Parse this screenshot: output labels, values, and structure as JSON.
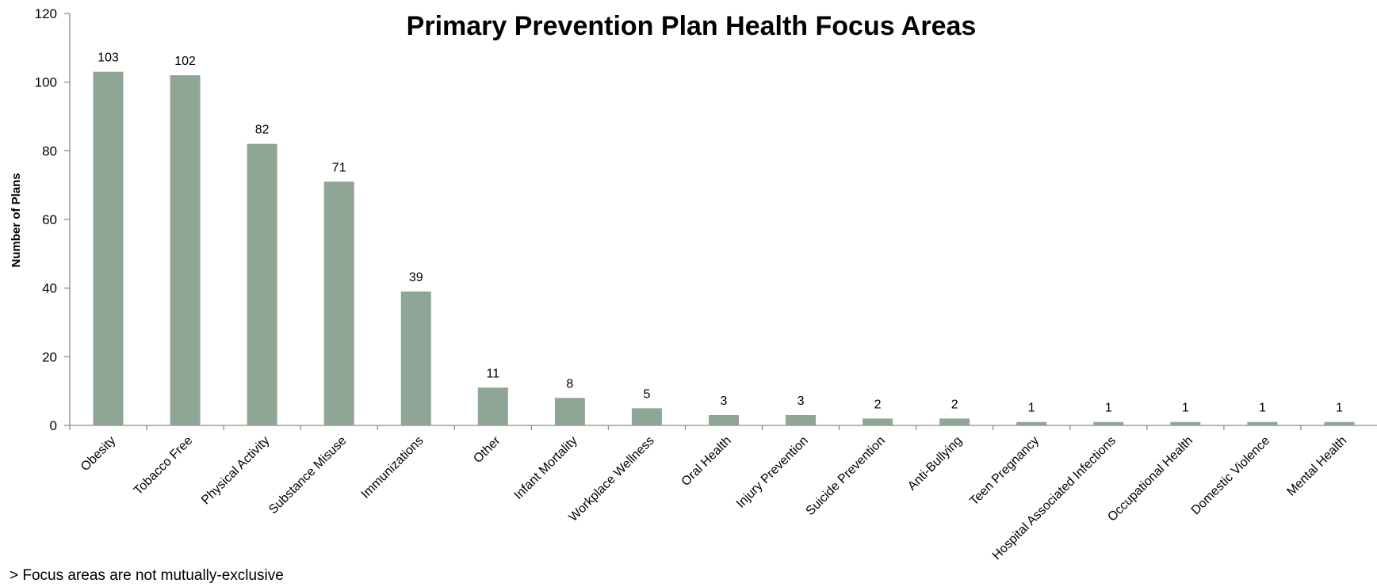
{
  "chart_data": {
    "type": "bar",
    "title": "Primary Prevention Plan Health Focus Areas",
    "xlabel": "",
    "ylabel": "Number of Plans",
    "ylim": [
      0,
      120
    ],
    "yticks": [
      0,
      20,
      40,
      60,
      80,
      100,
      120
    ],
    "grid": false,
    "legend": "none",
    "bar_color": "#8fa595",
    "categories": [
      "Obesity",
      "Tobacco Free",
      "Physical Activity",
      "Substance Misuse",
      "Immunizations",
      "Other",
      "Infant Mortality",
      "Workplace Wellness",
      "Oral Health",
      "Injury Prevention",
      "Suicide Prevention",
      "Anti-Bullying",
      "Teen Pregnancy",
      "Hospital Associated Infections",
      "Occupational Health",
      "Domestic Violence",
      "Mental Health"
    ],
    "values": [
      103,
      102,
      82,
      71,
      39,
      11,
      8,
      5,
      3,
      3,
      2,
      2,
      1,
      1,
      1,
      1,
      1
    ]
  },
  "footnote": "> Focus areas are not mutually-exclusive"
}
